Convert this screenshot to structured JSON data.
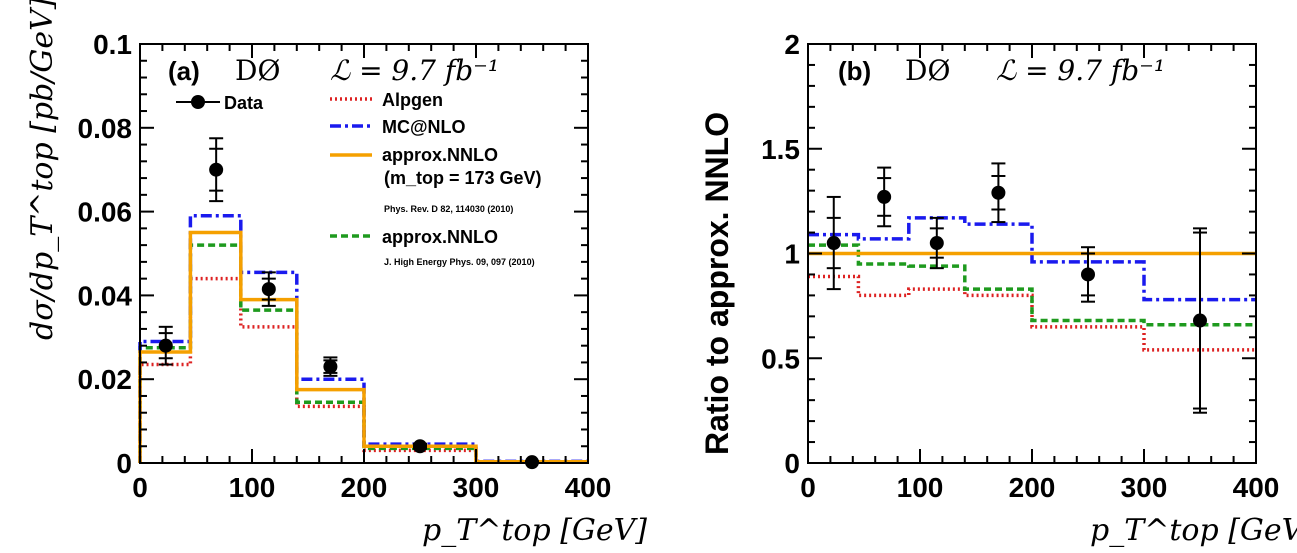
{
  "colors": {
    "data": "#000000",
    "alpgen": "#dd2222",
    "mcatnlo": "#1a1aee",
    "nnlo_solid": "#f5a000",
    "nnlo_dashed": "#1e9a1e"
  },
  "chart_data": [
    {
      "type": "line",
      "panel_label": "(a)",
      "experiment": "DØ",
      "luminosity": "ℒ = 9.7 fb⁻¹",
      "xlabel": "p_T^top [GeV]",
      "ylabel": "dσ/dp_T^top [pb/GeV]",
      "xlim": [
        0,
        400
      ],
      "ylim": [
        0,
        0.1
      ],
      "xticks": [
        "0",
        "100",
        "200",
        "300",
        "400"
      ],
      "yticks": [
        "0",
        "0.02",
        "0.04",
        "0.06",
        "0.08",
        "0.1"
      ],
      "bin_edges": [
        0,
        45,
        90,
        140,
        200,
        300,
        400
      ],
      "legend": {
        "data": "Data",
        "alpgen": "Alpgen",
        "mcatnlo": "MC@NLO",
        "nnlo1": "approx.NNLO",
        "nnlo1_mass": "(m_top = 173 GeV)",
        "nnlo1_ref": "Phys. Rev. D 82, 114030 (2010)",
        "nnlo2": "approx.NNLO",
        "nnlo2_ref": "J. High Energy Phys. 09, 097 (2010)"
      },
      "series": [
        {
          "name": "Alpgen",
          "style": "dotted",
          "values": [
            0.0235,
            0.044,
            0.0325,
            0.0135,
            0.003,
            0.0002
          ]
        },
        {
          "name": "MC@NLO",
          "style": "dashdot",
          "values": [
            0.029,
            0.059,
            0.0455,
            0.02,
            0.0045,
            0.0004
          ]
        },
        {
          "name": "approx.NNLO (m_top = 173 GeV)",
          "style": "solid",
          "values": [
            0.0265,
            0.055,
            0.039,
            0.0175,
            0.004,
            0.0003
          ]
        },
        {
          "name": "approx.NNLO",
          "style": "dashed",
          "values": [
            0.0275,
            0.052,
            0.0365,
            0.0145,
            0.0035,
            0.0003
          ]
        }
      ],
      "data_points": {
        "x": [
          23,
          68,
          115,
          170,
          250,
          350
        ],
        "y": [
          0.028,
          0.07,
          0.0415,
          0.023,
          0.004,
          0.0002
        ],
        "err_inner": [
          0.003,
          0.005,
          0.0025,
          0.0015,
          0.0004,
          0.0001
        ],
        "err_total": [
          0.0045,
          0.0075,
          0.004,
          0.0022,
          0.0006,
          0.0002
        ]
      }
    },
    {
      "type": "line",
      "panel_label": "(b)",
      "experiment": "DØ",
      "luminosity": "ℒ = 9.7 fb⁻¹",
      "xlabel": "p_T^top [GeV]",
      "ylabel": "Ratio to approx. NNLO",
      "xlim": [
        0,
        400
      ],
      "ylim": [
        0,
        2
      ],
      "xticks": [
        "0",
        "100",
        "200",
        "300",
        "400"
      ],
      "yticks": [
        "0",
        "0.5",
        "1",
        "1.5",
        "2"
      ],
      "bin_edges": [
        0,
        45,
        90,
        140,
        200,
        300,
        400
      ],
      "series": [
        {
          "name": "Alpgen",
          "style": "dotted",
          "values": [
            0.89,
            0.8,
            0.83,
            0.8,
            0.65,
            0.54
          ]
        },
        {
          "name": "MC@NLO",
          "style": "dashdot",
          "values": [
            1.09,
            1.07,
            1.17,
            1.14,
            0.96,
            0.78
          ]
        },
        {
          "name": "approx.NNLO (m_top = 173 GeV)",
          "style": "solid",
          "values": [
            1.0,
            1.0,
            1.0,
            1.0,
            1.0,
            1.0
          ]
        },
        {
          "name": "approx.NNLO",
          "style": "dashed",
          "values": [
            1.04,
            0.95,
            0.94,
            0.83,
            0.68,
            0.66
          ]
        }
      ],
      "data_points": {
        "x": [
          23,
          68,
          115,
          170,
          250,
          350
        ],
        "y": [
          1.05,
          1.27,
          1.05,
          1.29,
          0.9,
          0.68
        ],
        "err_inner": [
          0.12,
          0.09,
          0.07,
          0.08,
          0.1,
          0.42
        ],
        "err_total": [
          0.22,
          0.14,
          0.12,
          0.14,
          0.13,
          0.44
        ]
      }
    }
  ]
}
